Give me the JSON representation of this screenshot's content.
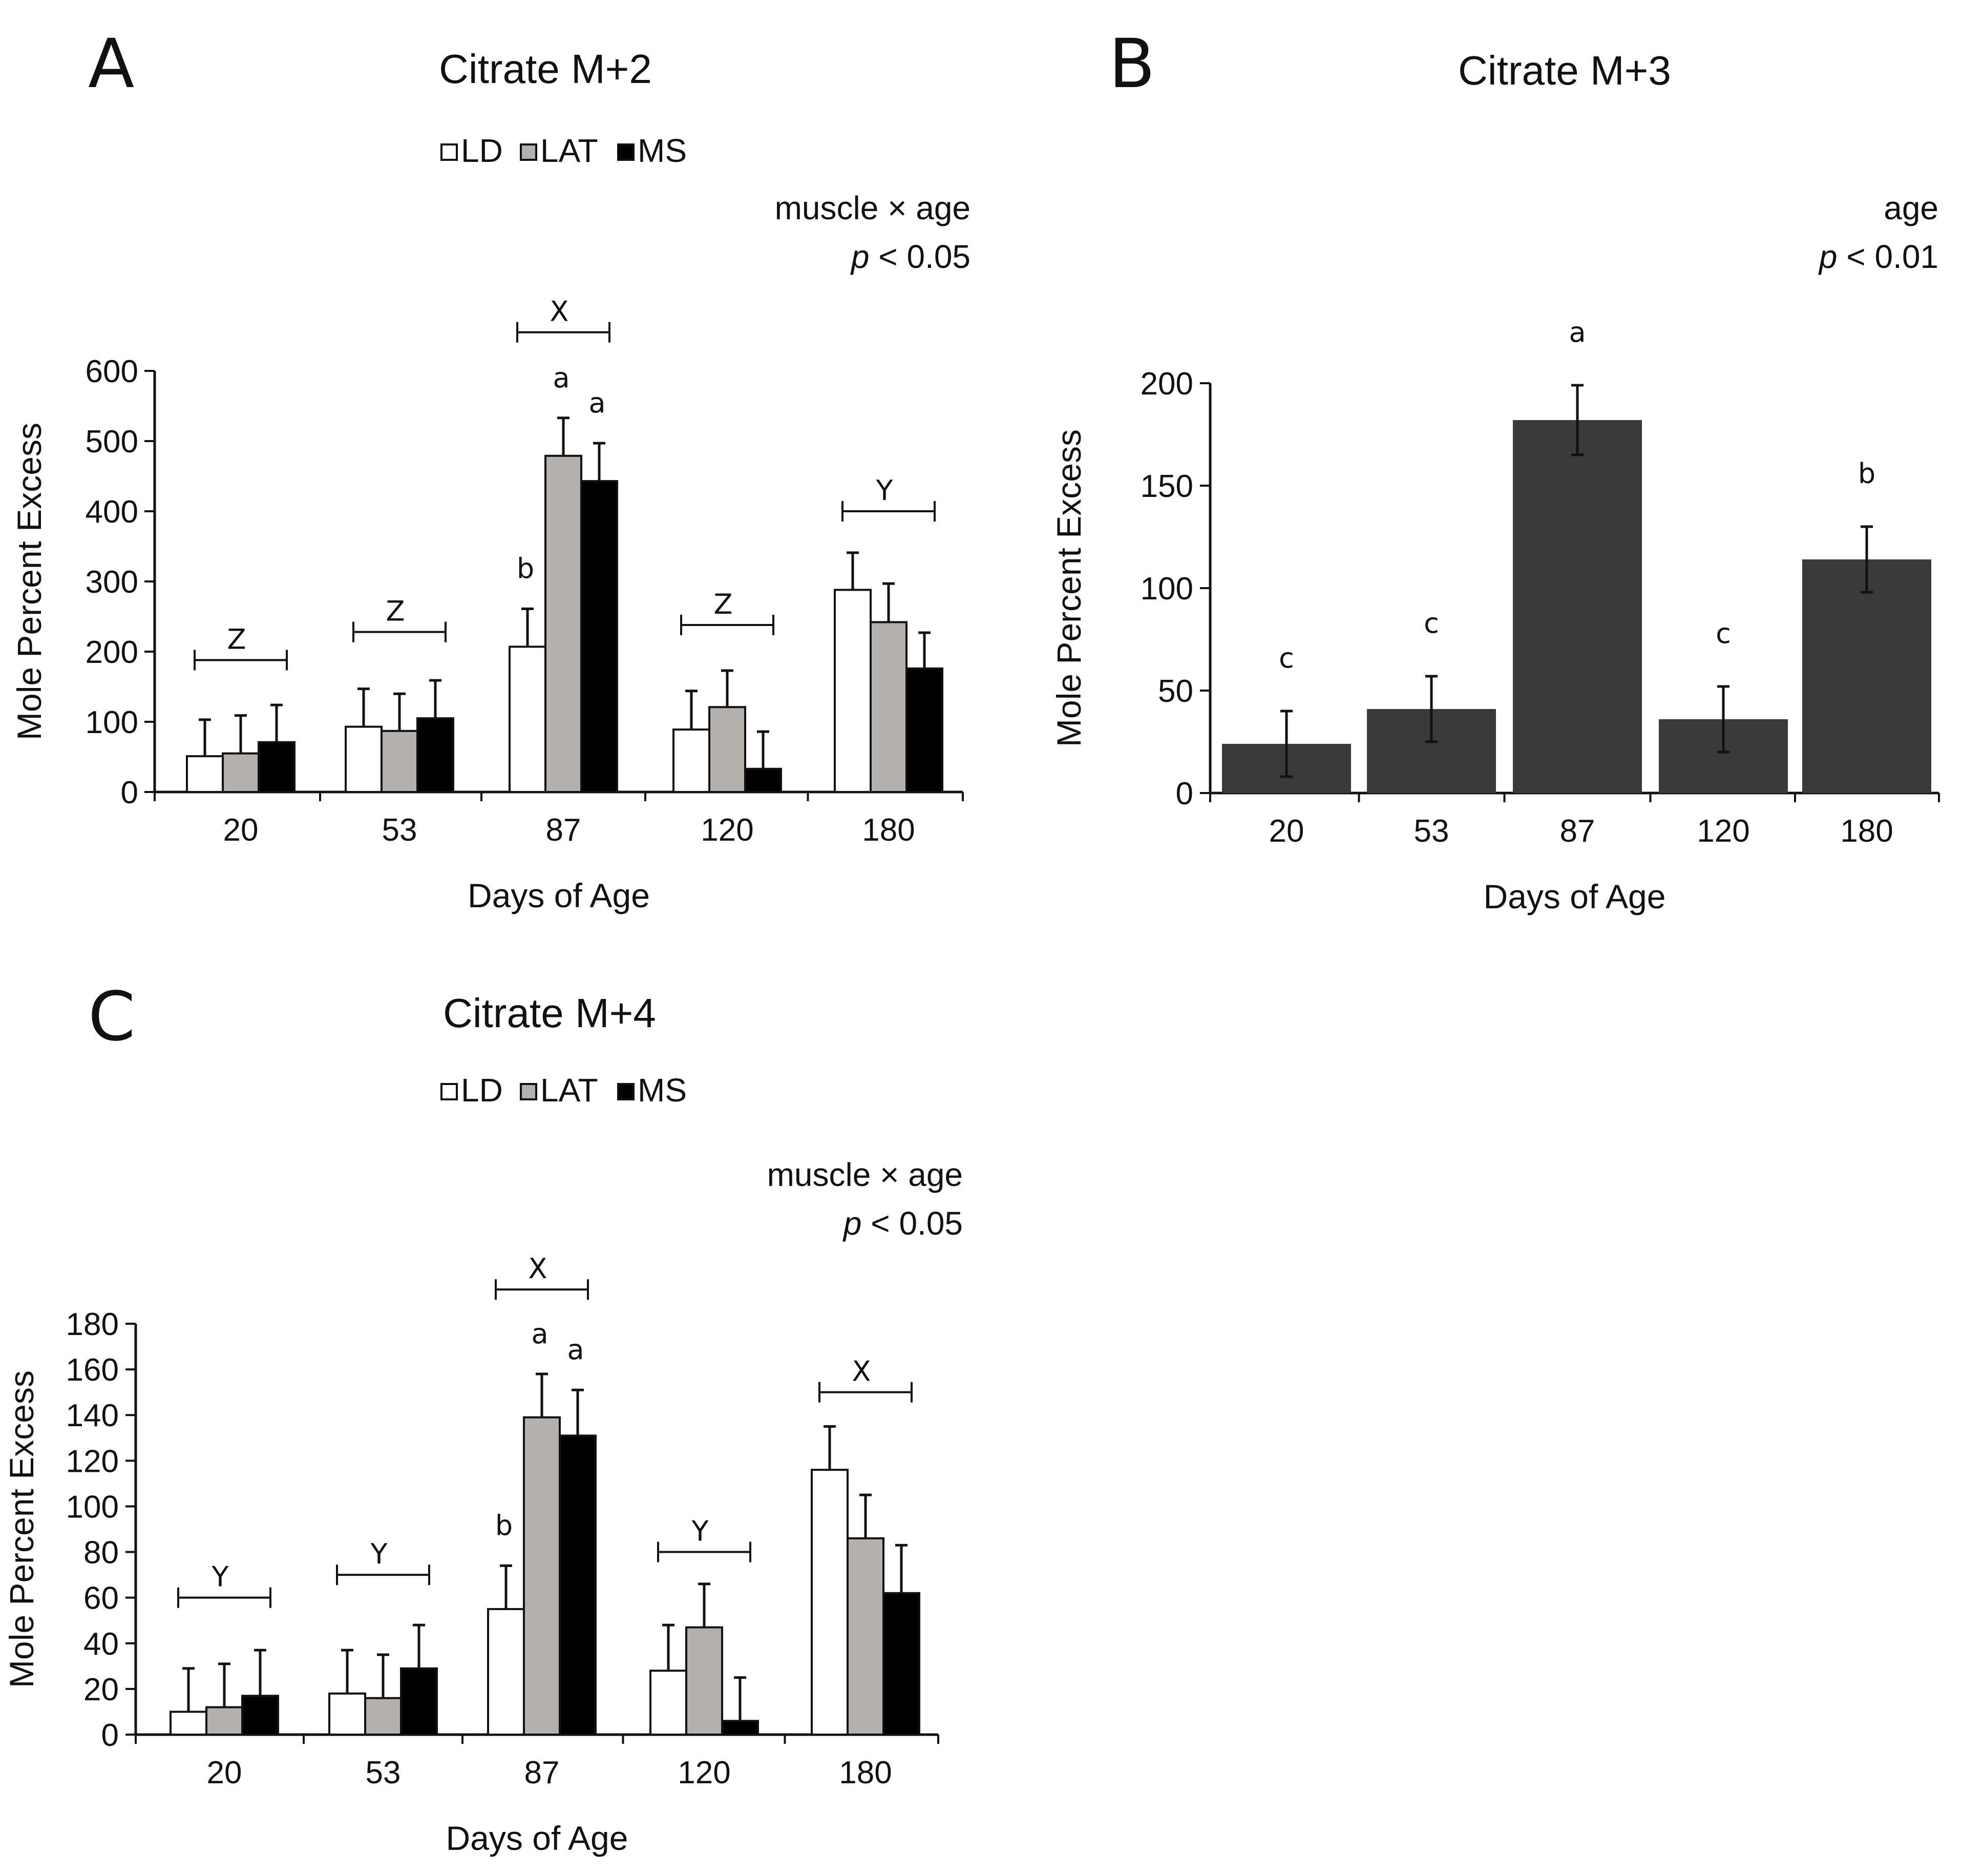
{
  "colors": {
    "LD": "#ffffff",
    "LAT": "#b3b0ae",
    "MS": "#000000",
    "single": "#3a3a3a",
    "ink": "#111111"
  },
  "chart_data": [
    {
      "id": "A",
      "panel_letter": "A",
      "type": "bar",
      "title": "Citrate M+2",
      "legend": [
        "LD",
        "LAT",
        "MS"
      ],
      "stat_line1": "muscle × age",
      "stat_p": "p",
      "stat_line2": " < 0.05",
      "xlabel": "Days of Age",
      "ylabel": "Mole Percent Excess",
      "ylim": [
        0,
        600
      ],
      "yticks": [
        0,
        100,
        200,
        300,
        400,
        500,
        600
      ],
      "categories": [
        "20",
        "53",
        "87",
        "120",
        "180"
      ],
      "series": [
        {
          "name": "LD",
          "values": [
            51,
            93,
            207,
            89,
            288
          ],
          "errors": [
            52,
            54,
            54,
            55,
            53
          ]
        },
        {
          "name": "LAT",
          "values": [
            55,
            87,
            479,
            121,
            242
          ],
          "errors": [
            54,
            53,
            54,
            52,
            55
          ]
        },
        {
          "name": "MS",
          "values": [
            71,
            105,
            443,
            33,
            176
          ],
          "errors": [
            53,
            54,
            54,
            53,
            51
          ]
        }
      ],
      "bar_labels": [
        {
          "category": "87",
          "series": "LD",
          "text": "b"
        },
        {
          "category": "87",
          "series": "LAT",
          "text": "a"
        },
        {
          "category": "87",
          "series": "MS",
          "text": "a"
        }
      ],
      "group_brackets": [
        {
          "category": "20",
          "text": "Z",
          "y": 188
        },
        {
          "category": "53",
          "text": "Z",
          "y": 228
        },
        {
          "category": "87",
          "text": "X",
          "y": 655
        },
        {
          "category": "120",
          "text": "Z",
          "y": 238
        },
        {
          "category": "180",
          "text": "Y",
          "y": 400
        }
      ]
    },
    {
      "id": "B",
      "panel_letter": "B",
      "type": "bar",
      "title": "Citrate M+3",
      "stat_line1": "age",
      "stat_p": "p",
      "stat_line2": " < 0.01",
      "xlabel": "Days of Age",
      "ylabel": "Mole Percent Excess",
      "ylim": [
        0,
        200
      ],
      "yticks": [
        0,
        50,
        100,
        150,
        200
      ],
      "categories": [
        "20",
        "53",
        "87",
        "120",
        "180"
      ],
      "values": [
        24,
        41,
        182,
        36,
        114
      ],
      "errors": [
        16,
        16,
        17,
        16,
        16
      ],
      "bar_labels": [
        "c",
        "c",
        "a",
        "c",
        "b"
      ]
    },
    {
      "id": "C",
      "panel_letter": "C",
      "type": "bar",
      "title": "Citrate M+4",
      "legend": [
        "LD",
        "LAT",
        "MS"
      ],
      "stat_line1": "muscle × age",
      "stat_p": "p",
      "stat_line2": " < 0.05",
      "xlabel": "Days of Age",
      "ylabel": "Mole Percent Excess",
      "ylim": [
        0,
        180
      ],
      "yticks": [
        0,
        20,
        40,
        60,
        80,
        100,
        120,
        140,
        160,
        180
      ],
      "categories": [
        "20",
        "53",
        "87",
        "120",
        "180"
      ],
      "series": [
        {
          "name": "LD",
          "values": [
            10,
            18,
            55,
            28,
            116
          ],
          "errors": [
            19,
            19,
            19,
            20,
            19
          ]
        },
        {
          "name": "LAT",
          "values": [
            12,
            16,
            139,
            47,
            86
          ],
          "errors": [
            19,
            19,
            19,
            19,
            19
          ]
        },
        {
          "name": "MS",
          "values": [
            17,
            29,
            131,
            6,
            62
          ],
          "errors": [
            20,
            19,
            20,
            19,
            21
          ]
        }
      ],
      "bar_labels": [
        {
          "category": "87",
          "series": "LD",
          "text": "b"
        },
        {
          "category": "87",
          "series": "LAT",
          "text": "a"
        },
        {
          "category": "87",
          "series": "MS",
          "text": "a"
        }
      ],
      "group_brackets": [
        {
          "category": "20",
          "text": "Y",
          "y": 60
        },
        {
          "category": "53",
          "text": "Y",
          "y": 70
        },
        {
          "category": "87",
          "text": "X",
          "y": 195
        },
        {
          "category": "120",
          "text": "Y",
          "y": 80
        },
        {
          "category": "180",
          "text": "X",
          "y": 150
        }
      ]
    }
  ]
}
